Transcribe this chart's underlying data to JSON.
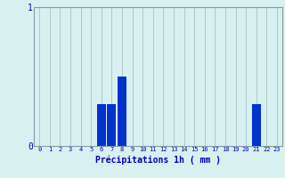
{
  "hours": [
    0,
    1,
    2,
    3,
    4,
    5,
    6,
    7,
    8,
    9,
    10,
    11,
    12,
    13,
    14,
    15,
    16,
    17,
    18,
    19,
    20,
    21,
    22,
    23
  ],
  "values": [
    0,
    0,
    0,
    0,
    0,
    0,
    0.3,
    0.3,
    0.5,
    0,
    0,
    0,
    0,
    0,
    0,
    0,
    0,
    0,
    0,
    0,
    0,
    0.3,
    0,
    0
  ],
  "bar_color": "#0033cc",
  "background_color": "#d8f0f0",
  "grid_color": "#adc8c8",
  "axis_color": "#8899aa",
  "text_color": "#0000bb",
  "xlabel": "Précipitations 1h ( mm )",
  "ylim": [
    0,
    1
  ],
  "ytick_labels": [
    "0",
    "1"
  ],
  "ytick_values": [
    0,
    1
  ],
  "bar_width": 0.85
}
